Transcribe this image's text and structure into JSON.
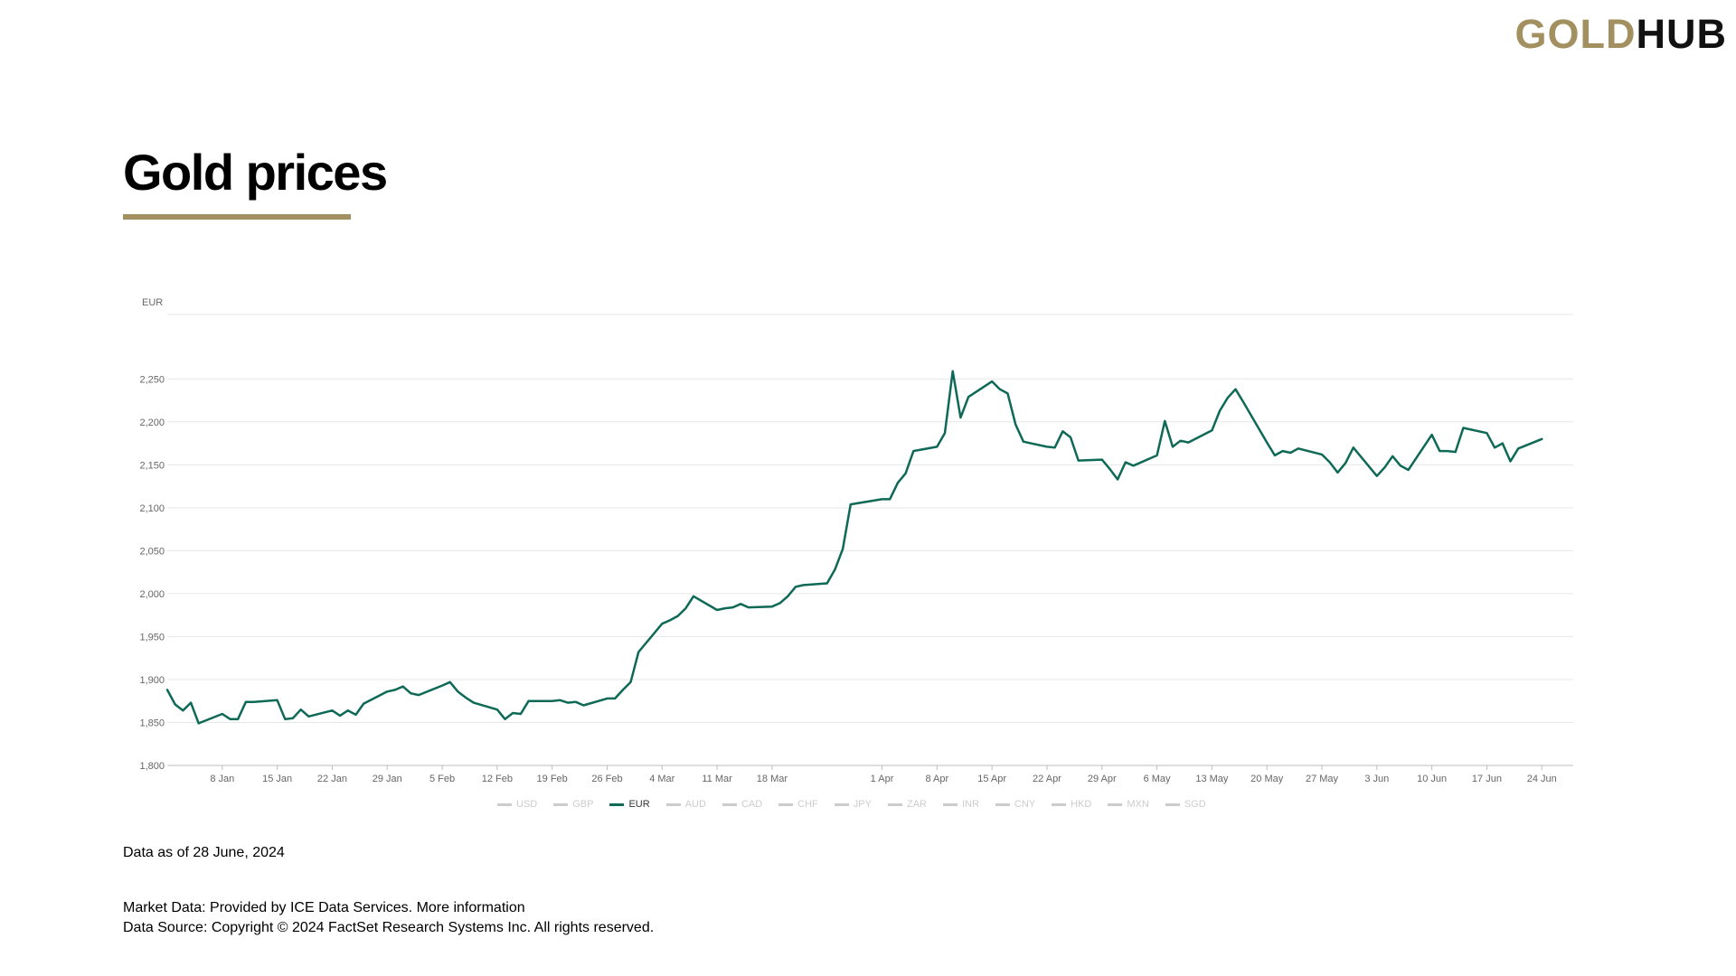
{
  "logo": {
    "part1": "GOLD",
    "part2": "HUB"
  },
  "page_title": "Gold prices",
  "chart_data": {
    "type": "line",
    "unit_label": "EUR",
    "ylim": [
      1800,
      2325
    ],
    "y_ticks": [
      1800,
      1850,
      1900,
      1950,
      2000,
      2050,
      2100,
      2150,
      2200,
      2250
    ],
    "y_tick_labels": [
      "1,800",
      "1,850",
      "1,900",
      "1,950",
      "2,000",
      "2,050",
      "2,100",
      "2,150",
      "2,200",
      "2,250"
    ],
    "grid": true,
    "x_ticks": [
      {
        "label": "8 Jan",
        "date": "2024-01-08"
      },
      {
        "label": "15 Jan",
        "date": "2024-01-15"
      },
      {
        "label": "22 Jan",
        "date": "2024-01-22"
      },
      {
        "label": "29 Jan",
        "date": "2024-01-29"
      },
      {
        "label": "5 Feb",
        "date": "2024-02-05"
      },
      {
        "label": "12 Feb",
        "date": "2024-02-12"
      },
      {
        "label": "19 Feb",
        "date": "2024-02-19"
      },
      {
        "label": "26 Feb",
        "date": "2024-02-26"
      },
      {
        "label": "4 Mar",
        "date": "2024-03-04"
      },
      {
        "label": "11 Mar",
        "date": "2024-03-11"
      },
      {
        "label": "18 Mar",
        "date": "2024-03-18"
      },
      {
        "label": "1 Apr",
        "date": "2024-04-01"
      },
      {
        "label": "8 Apr",
        "date": "2024-04-08"
      },
      {
        "label": "15 Apr",
        "date": "2024-04-15"
      },
      {
        "label": "22 Apr",
        "date": "2024-04-22"
      },
      {
        "label": "29 Apr",
        "date": "2024-04-29"
      },
      {
        "label": "6 May",
        "date": "2024-05-06"
      },
      {
        "label": "13 May",
        "date": "2024-05-13"
      },
      {
        "label": "20 May",
        "date": "2024-05-20"
      },
      {
        "label": "27 May",
        "date": "2024-05-27"
      },
      {
        "label": "3 Jun",
        "date": "2024-06-03"
      },
      {
        "label": "10 Jun",
        "date": "2024-06-10"
      },
      {
        "label": "17 Jun",
        "date": "2024-06-17"
      },
      {
        "label": "24 Jun",
        "date": "2024-06-24"
      }
    ],
    "series": [
      {
        "name": "EUR",
        "color": "#0e6957",
        "points": [
          [
            "2024-01-01",
            1888
          ],
          [
            "2024-01-02",
            1871
          ],
          [
            "2024-01-03",
            1864
          ],
          [
            "2024-01-04",
            1873
          ],
          [
            "2024-01-05",
            1849
          ],
          [
            "2024-01-08",
            1860
          ],
          [
            "2024-01-09",
            1854
          ],
          [
            "2024-01-10",
            1854
          ],
          [
            "2024-01-11",
            1874
          ],
          [
            "2024-01-12",
            1874
          ],
          [
            "2024-01-15",
            1876
          ],
          [
            "2024-01-16",
            1854
          ],
          [
            "2024-01-17",
            1855
          ],
          [
            "2024-01-18",
            1865
          ],
          [
            "2024-01-19",
            1857
          ],
          [
            "2024-01-22",
            1864
          ],
          [
            "2024-01-23",
            1858
          ],
          [
            "2024-01-24",
            1864
          ],
          [
            "2024-01-25",
            1859
          ],
          [
            "2024-01-26",
            1872
          ],
          [
            "2024-01-29",
            1886
          ],
          [
            "2024-01-30",
            1888
          ],
          [
            "2024-01-31",
            1892
          ],
          [
            "2024-02-01",
            1884
          ],
          [
            "2024-02-02",
            1882
          ],
          [
            "2024-02-05",
            1893
          ],
          [
            "2024-02-06",
            1897
          ],
          [
            "2024-02-07",
            1886
          ],
          [
            "2024-02-08",
            1879
          ],
          [
            "2024-02-09",
            1873
          ],
          [
            "2024-02-12",
            1865
          ],
          [
            "2024-02-13",
            1854
          ],
          [
            "2024-02-14",
            1861
          ],
          [
            "2024-02-15",
            1860
          ],
          [
            "2024-02-16",
            1875
          ],
          [
            "2024-02-19",
            1875
          ],
          [
            "2024-02-20",
            1876
          ],
          [
            "2024-02-21",
            1873
          ],
          [
            "2024-02-22",
            1874
          ],
          [
            "2024-02-23",
            1870
          ],
          [
            "2024-02-26",
            1878
          ],
          [
            "2024-02-27",
            1878
          ],
          [
            "2024-02-28",
            1888
          ],
          [
            "2024-02-29",
            1897
          ],
          [
            "2024-03-01",
            1932
          ],
          [
            "2024-03-04",
            1965
          ],
          [
            "2024-03-05",
            1969
          ],
          [
            "2024-03-06",
            1974
          ],
          [
            "2024-03-07",
            1983
          ],
          [
            "2024-03-08",
            1997
          ],
          [
            "2024-03-11",
            1981
          ],
          [
            "2024-03-12",
            1983
          ],
          [
            "2024-03-13",
            1984
          ],
          [
            "2024-03-14",
            1988
          ],
          [
            "2024-03-15",
            1984
          ],
          [
            "2024-03-18",
            1985
          ],
          [
            "2024-03-19",
            1989
          ],
          [
            "2024-03-20",
            1997
          ],
          [
            "2024-03-21",
            2008
          ],
          [
            "2024-03-22",
            2010
          ],
          [
            "2024-03-25",
            2012
          ],
          [
            "2024-03-26",
            2028
          ],
          [
            "2024-03-27",
            2052
          ],
          [
            "2024-03-28",
            2104
          ],
          [
            "2024-04-01",
            2110
          ],
          [
            "2024-04-02",
            2110
          ],
          [
            "2024-04-03",
            2129
          ],
          [
            "2024-04-04",
            2140
          ],
          [
            "2024-04-05",
            2166
          ],
          [
            "2024-04-08",
            2171
          ],
          [
            "2024-04-09",
            2187
          ],
          [
            "2024-04-10",
            2259
          ],
          [
            "2024-04-11",
            2205
          ],
          [
            "2024-04-12",
            2229
          ],
          [
            "2024-04-15",
            2247
          ],
          [
            "2024-04-16",
            2238
          ],
          [
            "2024-04-17",
            2233
          ],
          [
            "2024-04-18",
            2197
          ],
          [
            "2024-04-19",
            2177
          ],
          [
            "2024-04-22",
            2171
          ],
          [
            "2024-04-23",
            2170
          ],
          [
            "2024-04-24",
            2189
          ],
          [
            "2024-04-25",
            2182
          ],
          [
            "2024-04-26",
            2155
          ],
          [
            "2024-04-29",
            2156
          ],
          [
            "2024-04-30",
            2145
          ],
          [
            "2024-05-01",
            2133
          ],
          [
            "2024-05-02",
            2153
          ],
          [
            "2024-05-03",
            2149
          ],
          [
            "2024-05-06",
            2161
          ],
          [
            "2024-05-07",
            2201
          ],
          [
            "2024-05-08",
            2171
          ],
          [
            "2024-05-09",
            2178
          ],
          [
            "2024-05-10",
            2176
          ],
          [
            "2024-05-13",
            2190
          ],
          [
            "2024-05-14",
            2213
          ],
          [
            "2024-05-15",
            2228
          ],
          [
            "2024-05-16",
            2238
          ],
          [
            "2024-05-17",
            2223
          ],
          [
            "2024-05-20",
            2176
          ],
          [
            "2024-05-21",
            2161
          ],
          [
            "2024-05-22",
            2166
          ],
          [
            "2024-05-23",
            2164
          ],
          [
            "2024-05-24",
            2169
          ],
          [
            "2024-05-27",
            2162
          ],
          [
            "2024-05-28",
            2153
          ],
          [
            "2024-05-29",
            2141
          ],
          [
            "2024-05-30",
            2152
          ],
          [
            "2024-05-31",
            2170
          ],
          [
            "2024-06-03",
            2137
          ],
          [
            "2024-06-04",
            2147
          ],
          [
            "2024-06-05",
            2160
          ],
          [
            "2024-06-06",
            2149
          ],
          [
            "2024-06-07",
            2144
          ],
          [
            "2024-06-10",
            2185
          ],
          [
            "2024-06-11",
            2166
          ],
          [
            "2024-06-12",
            2166
          ],
          [
            "2024-06-13",
            2165
          ],
          [
            "2024-06-14",
            2193
          ],
          [
            "2024-06-17",
            2187
          ],
          [
            "2024-06-18",
            2170
          ],
          [
            "2024-06-19",
            2175
          ],
          [
            "2024-06-20",
            2154
          ],
          [
            "2024-06-21",
            2169
          ],
          [
            "2024-06-24",
            2180
          ]
        ]
      }
    ]
  },
  "legend": [
    {
      "label": "USD",
      "active": false
    },
    {
      "label": "GBP",
      "active": false
    },
    {
      "label": "EUR",
      "active": true
    },
    {
      "label": "AUD",
      "active": false
    },
    {
      "label": "CAD",
      "active": false
    },
    {
      "label": "CHF",
      "active": false
    },
    {
      "label": "JPY",
      "active": false
    },
    {
      "label": "ZAR",
      "active": false
    },
    {
      "label": "INR",
      "active": false
    },
    {
      "label": "CNY",
      "active": false
    },
    {
      "label": "HKD",
      "active": false
    },
    {
      "label": "MXN",
      "active": false
    },
    {
      "label": "SGD",
      "active": false
    }
  ],
  "data_as_of": "Data as of 28 June, 2024",
  "footer": {
    "market_data_prefix": "Market Data: Provided by ICE Data Services.",
    "more_info_link": "More information",
    "data_source": "Data Source: Copyright © 2024 FactSet Research Systems Inc. All rights reserved."
  },
  "colors": {
    "brand_gold": "#a39061",
    "line": "#0e6957",
    "legend_inactive": "#cccccc"
  }
}
